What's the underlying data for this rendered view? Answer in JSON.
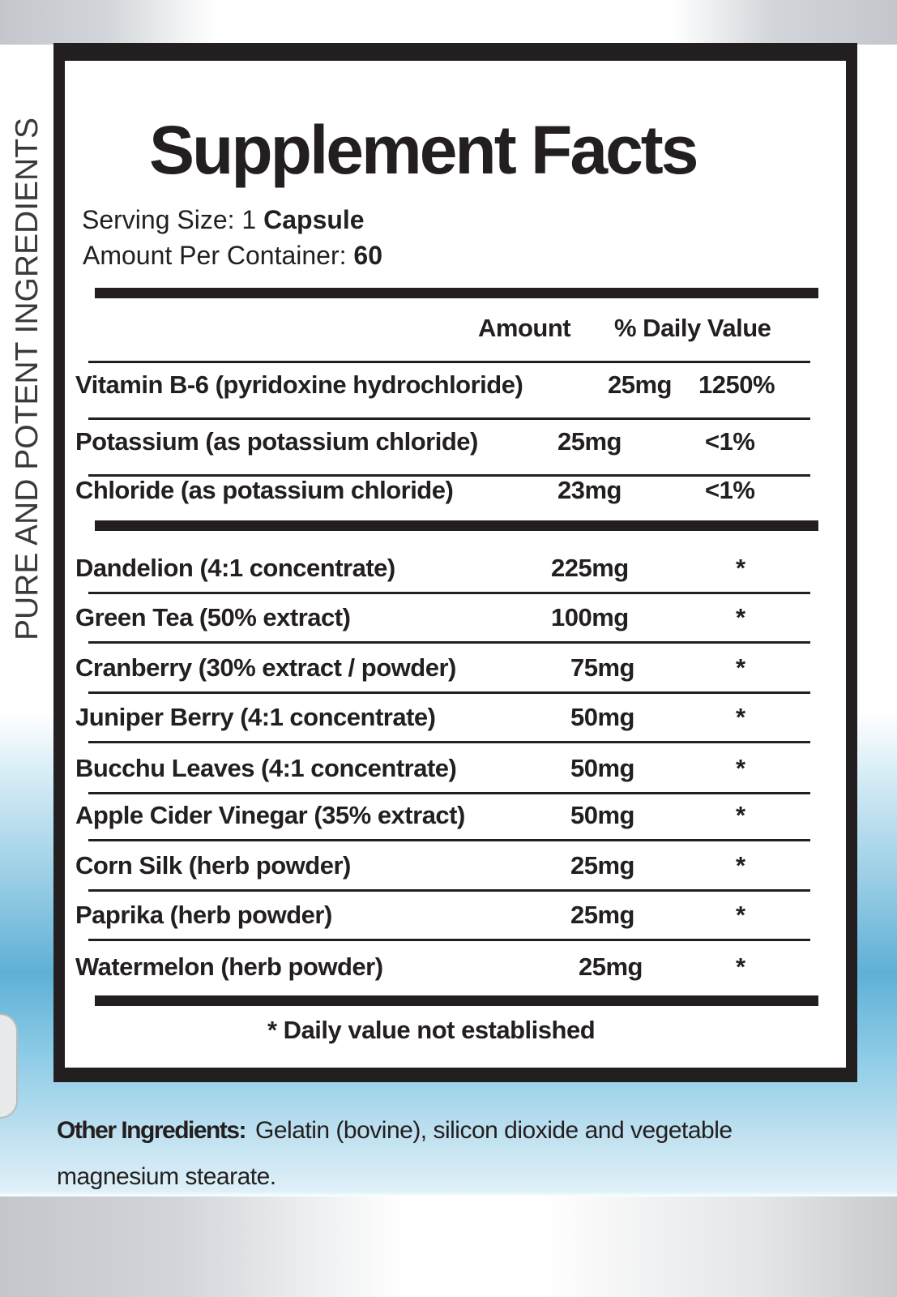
{
  "side_text": "PURE AND POTENT INGREDIENTS",
  "title": "Supplement Facts",
  "serving_size": {
    "label": "Serving Size: 1",
    "value": "Capsule"
  },
  "per_container": {
    "label": "Amount Per Container:",
    "value": "60"
  },
  "header": {
    "amount": "Amount",
    "dv": "% Daily Value"
  },
  "nutrients": [
    {
      "name": "Vitamin B-6 (pyridoxine hydrochloride)",
      "amount": "25mg",
      "dv": "1250%"
    },
    {
      "name": "Potassium (as potassium chloride)",
      "amount": "25mg",
      "dv": "<1%"
    },
    {
      "name": "Chloride (as potassium chloride)",
      "amount": "23mg",
      "dv": "<1%"
    }
  ],
  "ingredients": [
    {
      "name": "Dandelion (4:1 concentrate)",
      "amount": "225mg",
      "dv": "*"
    },
    {
      "name": "Green Tea (50% extract)",
      "amount": "100mg",
      "dv": "*"
    },
    {
      "name": "Cranberry (30% extract / powder)",
      "amount": "75mg",
      "dv": "*"
    },
    {
      "name": "Juniper Berry (4:1 concentrate)",
      "amount": "50mg",
      "dv": "*"
    },
    {
      "name": "Bucchu Leaves (4:1 concentrate)",
      "amount": "50mg",
      "dv": "*"
    },
    {
      "name": "Apple Cider Vinegar (35% extract)",
      "amount": "50mg",
      "dv": "*"
    },
    {
      "name": "Corn Silk (herb powder)",
      "amount": "25mg",
      "dv": "*"
    },
    {
      "name": "Paprika (herb powder)",
      "amount": "25mg",
      "dv": "*"
    },
    {
      "name": "Watermelon (herb powder)",
      "amount": "25mg",
      "dv": "*"
    }
  ],
  "footnote": "* Daily value not established",
  "other_ingredients": {
    "label": "Other Ingredients:",
    "text_line1": "Gelatin (bovine), silicon dioxide and vegetable",
    "text_line2": "magnesium stearate."
  }
}
